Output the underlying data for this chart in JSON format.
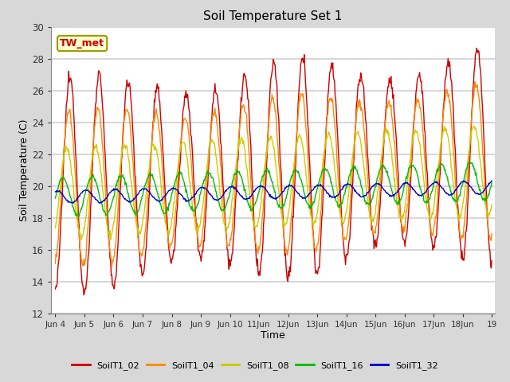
{
  "title": "Soil Temperature Set 1",
  "xlabel": "Time",
  "ylabel": "Soil Temperature (C)",
  "ylim": [
    12,
    30
  ],
  "yticks": [
    12,
    14,
    16,
    18,
    20,
    22,
    24,
    26,
    28,
    30
  ],
  "series_names": [
    "SoilT1_02",
    "SoilT1_04",
    "SoilT1_08",
    "SoilT1_16",
    "SoilT1_32"
  ],
  "series_colors": [
    "#cc0000",
    "#ff8800",
    "#cccc00",
    "#00bb00",
    "#0000cc"
  ],
  "annotation_text": "TW_met",
  "fig_bg_color": "#d8d8d8",
  "plot_bg_color": "#ffffff",
  "grid_color": "#d8d8d8",
  "start_day": 4,
  "end_day": 19,
  "xtick_days": [
    4,
    5,
    6,
    7,
    8,
    9,
    10,
    11,
    12,
    13,
    14,
    15,
    16,
    17,
    18,
    19
  ],
  "xtick_labels": [
    "Jun 4",
    "Jun 5",
    "Jun 6",
    "Jun 7",
    "Jun 8",
    "Jun 9",
    "Jun 10",
    "11Jun",
    "12Jun",
    "13Jun",
    "14Jun",
    "15Jun",
    "16Jun",
    "17Jun",
    "18Jun",
    "19"
  ]
}
